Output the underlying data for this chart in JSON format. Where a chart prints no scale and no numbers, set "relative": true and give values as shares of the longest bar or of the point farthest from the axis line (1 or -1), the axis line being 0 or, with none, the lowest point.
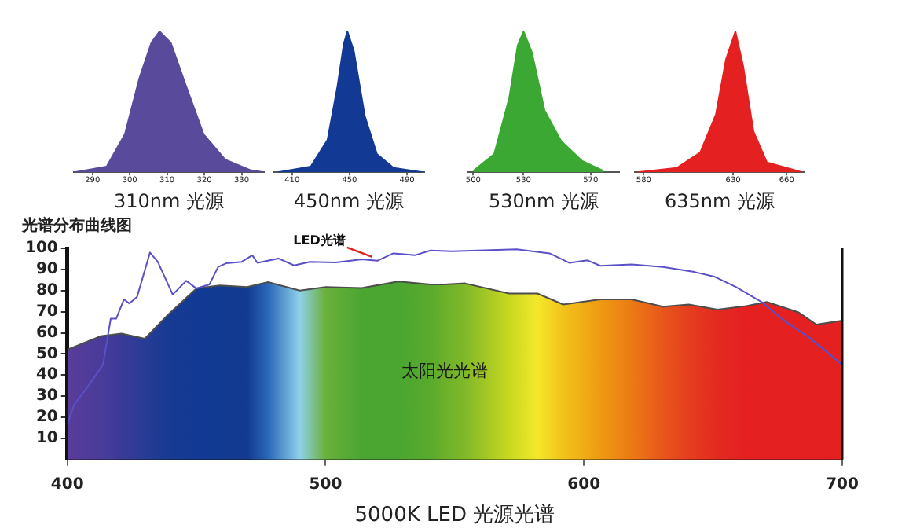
{
  "chart_data": [
    {
      "type": "area",
      "relative": true,
      "xlabel": "310nm 光源",
      "xlim": [
        285,
        336
      ],
      "xticks": [
        290,
        300,
        310,
        320,
        330
      ],
      "color": "#5a4a9c",
      "x": [
        285.2,
        293.8,
        298.7,
        302.5,
        305.8,
        308,
        311,
        315,
        319.8,
        325.6,
        332.3,
        336
      ],
      "values": [
        0,
        0.04,
        0.27,
        0.66,
        0.92,
        1,
        0.92,
        0.62,
        0.27,
        0.09,
        0.015,
        0
      ]
    },
    {
      "type": "area",
      "relative": true,
      "xlabel": "450nm 光源",
      "xlim": [
        397,
        502
      ],
      "xticks": [
        410,
        450,
        490
      ],
      "color": "#123a94",
      "x": [
        400.2,
        423,
        434.7,
        441.6,
        446,
        448.5,
        453,
        460.6,
        469,
        480.7,
        500.9
      ],
      "values": [
        0,
        0.04,
        0.23,
        0.61,
        0.91,
        1,
        0.86,
        0.4,
        0.13,
        0.03,
        0
      ]
    },
    {
      "type": "area",
      "relative": true,
      "xlabel": "530nm 光源",
      "xlim": [
        497,
        587
      ],
      "xticks": [
        500,
        530,
        570
      ],
      "color": "#3aa832",
      "x": [
        500,
        512.5,
        521.5,
        526.5,
        530,
        535,
        542.5,
        552.5,
        565,
        577.5
      ],
      "values": [
        0.01,
        0.13,
        0.53,
        0.9,
        1,
        0.85,
        0.44,
        0.22,
        0.08,
        0.01
      ]
    },
    {
      "type": "area",
      "relative": true,
      "xlabel": "635nm 光源",
      "xlim": [
        575,
        670
      ],
      "xticks": [
        580,
        630,
        660
      ],
      "color": "#e42020",
      "x": [
        576.5,
        598.4,
        611.6,
        620.4,
        626,
        631.3,
        635.7,
        641.4,
        648.9,
        668.6
      ],
      "values": [
        0,
        0.03,
        0.14,
        0.41,
        0.8,
        1,
        0.75,
        0.29,
        0.07,
        0
      ]
    },
    {
      "type": "line",
      "title": "光谱分布曲线图",
      "xlabel": "5000K LED 光源光谱",
      "xlim": [
        400,
        700
      ],
      "xticks": [
        400,
        500,
        600,
        700
      ],
      "ylim": [
        0,
        100
      ],
      "yticks": [
        10,
        20,
        30,
        40,
        50,
        60,
        70,
        80,
        90,
        100
      ],
      "annotations": [
        {
          "text": "LED光谱",
          "x": 518,
          "y": 96
        }
      ],
      "series": [
        {
          "type": "area",
          "name": "太阳光光谱",
          "color": "#4d4d4d",
          "x": [
            400,
            412.8,
            421,
            430,
            439,
            450,
            459,
            469.6,
            477.7,
            490,
            500,
            514,
            528,
            540.6,
            546,
            554,
            571,
            582,
            592,
            606.4,
            618.5,
            630.6,
            640.6,
            651.7,
            662.8,
            670.8,
            682.9,
            690,
            700
          ],
          "values": [
            52,
            58.4,
            59.6,
            57.2,
            68.6,
            81,
            82.4,
            81.7,
            84,
            80,
            81.7,
            81.2,
            84.3,
            82.9,
            82.9,
            83.4,
            78.6,
            78.6,
            73.4,
            75.8,
            75.8,
            72.4,
            73.4,
            71,
            72.7,
            74.6,
            69.8,
            63.9,
            65.8
          ],
          "colors": [
            "#5a3c9a",
            "#4a3c9a",
            "#3a3a98",
            "#283c95",
            "#173a92",
            "#123a94",
            "#113a92",
            "#123a8f",
            "#2a68b8",
            "#8fd0ea",
            "#6ab03a",
            "#4aa631",
            "#4aa631",
            "#5aaa2c",
            "#6cb02a",
            "#80b828",
            "#c8d820",
            "#f3e82a",
            "#f2c21a",
            "#ee9a12",
            "#ec7a14",
            "#e8561c",
            "#e53e1e",
            "#e42a20",
            "#e42020",
            "#e42020",
            "#e42020",
            "#e42020",
            "#e42020"
          ]
        },
        {
          "color": "#5a50c8",
          "x": [
            400,
            402.6,
            407.7,
            413.8,
            416.8,
            418.9,
            421.9,
            424,
            427,
            432,
            435,
            440.8,
            446,
            450,
            455,
            458.4,
            461.5,
            467.5,
            471.6,
            473.6,
            481.7,
            487.8,
            493.9,
            504,
            514,
            520,
            526.2,
            534.5,
            540.6,
            548.7,
            554,
            574,
            586.7,
            594.4,
            601.4,
            606.4,
            618.5,
            630.6,
            642.7,
            650.7,
            658.8,
            668.8,
            676.9,
            686.9,
            700
          ],
          "values": [
            16.4,
            25.9,
            34.2,
            44.9,
            66.7,
            66.7,
            75.8,
            73.9,
            77,
            98,
            93.6,
            78.1,
            84.6,
            81,
            82.9,
            91.2,
            92.9,
            93.6,
            96.7,
            93.1,
            95.2,
            91.9,
            93.6,
            93.3,
            94.8,
            94.1,
            97.6,
            96.7,
            99,
            98.6,
            98.8,
            99.5,
            97.6,
            93.1,
            94.3,
            91.7,
            92.4,
            91.2,
            88.8,
            86.5,
            81.7,
            74.6,
            66.3,
            58,
            44.9
          ]
        }
      ]
    }
  ]
}
